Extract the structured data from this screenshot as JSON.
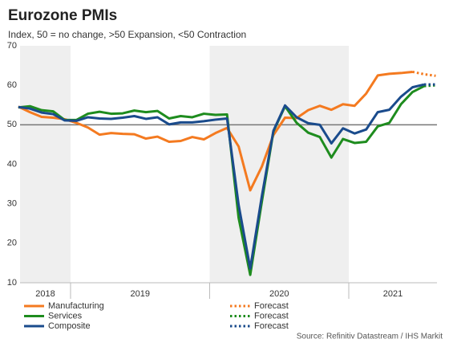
{
  "chart_data": {
    "type": "line",
    "title": "Eurozone PMIs",
    "subtitle": "Index, 50 = no change, >50 Expansion, <50 Contraction",
    "source": "Source: Refinitiv Datastream / IHS Markit",
    "x": [
      2018.625,
      2018.7083,
      2018.7917,
      2018.875,
      2018.9583,
      2019.0417,
      2019.125,
      2019.2083,
      2019.2917,
      2019.375,
      2019.4583,
      2019.5417,
      2019.625,
      2019.7083,
      2019.7917,
      2019.875,
      2019.9583,
      2020.0417,
      2020.125,
      2020.2083,
      2020.2917,
      2020.375,
      2020.4583,
      2020.5417,
      2020.625,
      2020.7083,
      2020.7917,
      2020.875,
      2020.9583,
      2021.0417,
      2021.125,
      2021.2083,
      2021.2917,
      2021.375,
      2021.4583,
      2021.5417,
      2021.625
    ],
    "xlim": [
      2018.637,
      2021.634
    ],
    "xticks": [
      2019,
      2020,
      2021
    ],
    "year_labels": [
      "2018",
      "2019",
      "2020",
      "2021"
    ],
    "ylim": [
      10,
      70
    ],
    "yticks": [
      10,
      20,
      30,
      40,
      50,
      60,
      70
    ],
    "hline": 50,
    "grid": false,
    "band_color": "#efefef",
    "series": [
      {
        "name": "Manufacturing",
        "color": "#f47a20",
        "style": "solid",
        "values": [
          54.6,
          53.2,
          52.0,
          51.8,
          51.4,
          50.5,
          49.3,
          47.5,
          47.9,
          47.7,
          47.6,
          46.5,
          47.0,
          45.7,
          45.9,
          46.9,
          46.3,
          47.9,
          49.2,
          44.5,
          33.4,
          39.4,
          47.4,
          51.8,
          51.7,
          53.7,
          54.8,
          53.8,
          55.2,
          54.8,
          57.9,
          62.5,
          62.9,
          63.1,
          63.4,
          null,
          null
        ]
      },
      {
        "name": "Services",
        "color": "#1e8c1e",
        "style": "solid",
        "values": [
          54.4,
          54.7,
          53.7,
          53.4,
          51.2,
          51.2,
          52.8,
          53.3,
          52.8,
          52.9,
          53.6,
          53.2,
          53.5,
          51.6,
          52.2,
          51.9,
          52.8,
          52.5,
          52.6,
          26.4,
          12.0,
          30.5,
          48.3,
          54.7,
          50.5,
          48.0,
          46.9,
          41.7,
          46.4,
          45.4,
          45.7,
          49.6,
          50.5,
          55.2,
          58.3,
          59.8,
          null
        ]
      },
      {
        "name": "Composite",
        "color": "#1a4b8c",
        "style": "solid",
        "values": [
          54.5,
          54.1,
          53.1,
          52.7,
          51.1,
          51.0,
          51.9,
          51.6,
          51.5,
          51.8,
          52.2,
          51.5,
          51.9,
          50.1,
          50.6,
          50.6,
          50.9,
          51.3,
          51.6,
          29.7,
          13.6,
          31.9,
          48.5,
          54.9,
          51.9,
          50.4,
          50.0,
          45.3,
          49.1,
          47.8,
          48.8,
          53.2,
          53.8,
          57.1,
          59.5,
          60.2,
          null
        ]
      },
      {
        "name": "Forecast",
        "color": "#f47a20",
        "style": "dotted",
        "values": [
          null,
          null,
          null,
          null,
          null,
          null,
          null,
          null,
          null,
          null,
          null,
          null,
          null,
          null,
          null,
          null,
          null,
          null,
          null,
          null,
          null,
          null,
          null,
          null,
          null,
          null,
          null,
          null,
          null,
          null,
          null,
          null,
          null,
          null,
          63.4,
          62.8,
          62.4
        ]
      },
      {
        "name": "Forecast",
        "color": "#1e8c1e",
        "style": "dotted",
        "values": [
          null,
          null,
          null,
          null,
          null,
          null,
          null,
          null,
          null,
          null,
          null,
          null,
          null,
          null,
          null,
          null,
          null,
          null,
          null,
          null,
          null,
          null,
          null,
          null,
          null,
          null,
          null,
          null,
          null,
          null,
          null,
          null,
          null,
          null,
          null,
          59.8,
          60.0
        ]
      },
      {
        "name": "Forecast",
        "color": "#1a4b8c",
        "style": "dotted",
        "values": [
          null,
          null,
          null,
          null,
          null,
          null,
          null,
          null,
          null,
          null,
          null,
          null,
          null,
          null,
          null,
          null,
          null,
          null,
          null,
          null,
          null,
          null,
          null,
          null,
          null,
          null,
          null,
          null,
          null,
          null,
          null,
          null,
          null,
          null,
          null,
          60.2,
          60.2
        ]
      }
    ]
  }
}
